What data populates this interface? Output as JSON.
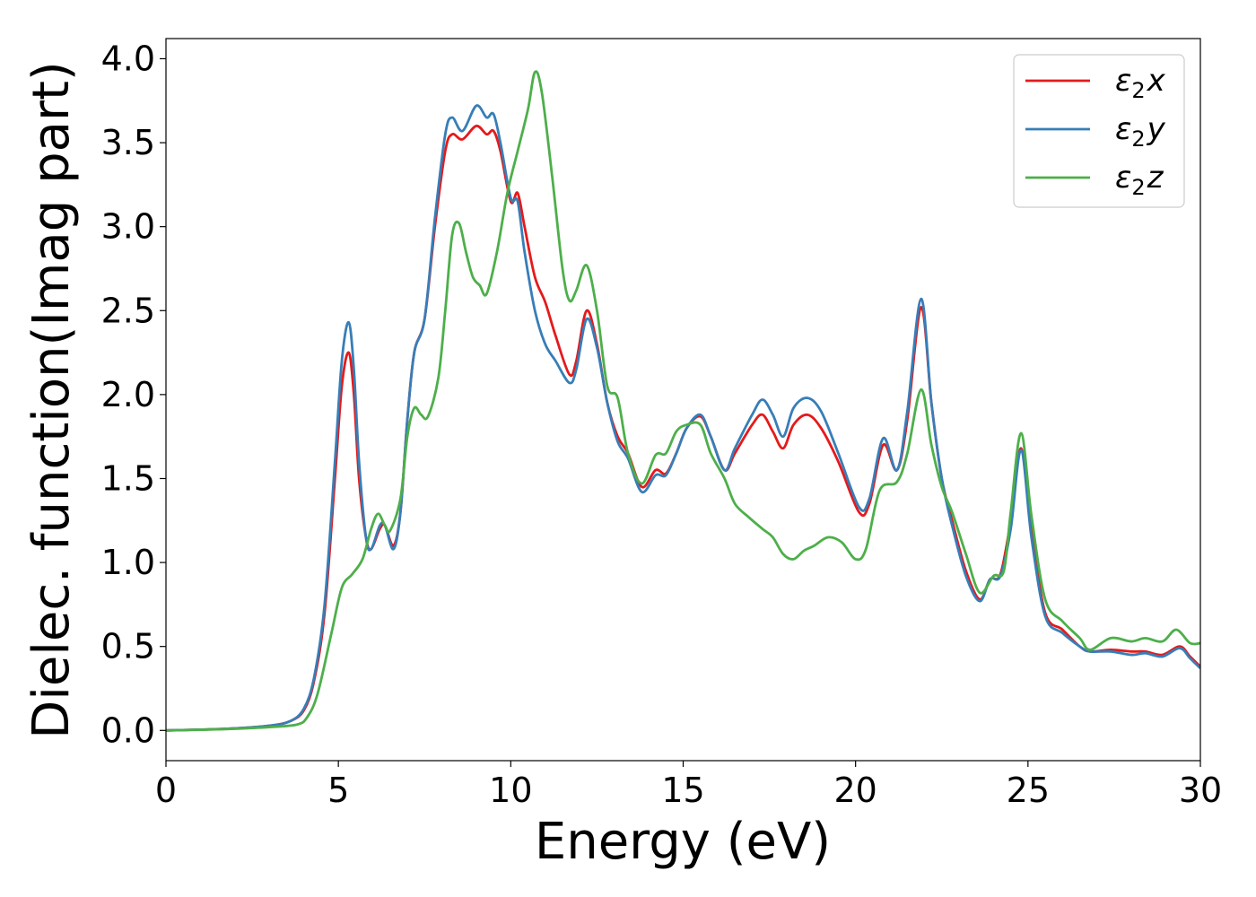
{
  "chart_data": {
    "type": "line",
    "xlabel": "Energy (eV)",
    "ylabel": "Dielec. function(Imag part)",
    "xlim": [
      0,
      30
    ],
    "ylim": [
      -0.18,
      4.12
    ],
    "xticks": [
      "0",
      "5",
      "10",
      "15",
      "20",
      "25",
      "30"
    ],
    "yticks": [
      "0.0",
      "0.5",
      "1.0",
      "1.5",
      "2.0",
      "2.5",
      "3.0",
      "3.5",
      "4.0"
    ],
    "grid": false,
    "legend_position": "top-right",
    "series": [
      {
        "name": "ε₂x",
        "legend_base": "ε",
        "legend_sub": "2",
        "legend_suffix": "x",
        "color": "#e41a1c",
        "points": [
          [
            0,
            0
          ],
          [
            1,
            0.005
          ],
          [
            2,
            0.012
          ],
          [
            3,
            0.028
          ],
          [
            3.6,
            0.055
          ],
          [
            4,
            0.12
          ],
          [
            4.3,
            0.3
          ],
          [
            4.6,
            0.7
          ],
          [
            4.9,
            1.5
          ],
          [
            5.1,
            2.05
          ],
          [
            5.3,
            2.25
          ],
          [
            5.45,
            2.0
          ],
          [
            5.6,
            1.5
          ],
          [
            5.8,
            1.15
          ],
          [
            5.95,
            1.08
          ],
          [
            6.2,
            1.2
          ],
          [
            6.35,
            1.22
          ],
          [
            6.6,
            1.1
          ],
          [
            6.8,
            1.3
          ],
          [
            7.0,
            1.85
          ],
          [
            7.2,
            2.25
          ],
          [
            7.5,
            2.45
          ],
          [
            7.8,
            3.0
          ],
          [
            8.1,
            3.45
          ],
          [
            8.3,
            3.55
          ],
          [
            8.6,
            3.52
          ],
          [
            9.0,
            3.6
          ],
          [
            9.3,
            3.55
          ],
          [
            9.5,
            3.57
          ],
          [
            9.7,
            3.45
          ],
          [
            10.0,
            3.15
          ],
          [
            10.2,
            3.2
          ],
          [
            10.4,
            3.0
          ],
          [
            10.7,
            2.7
          ],
          [
            11.0,
            2.55
          ],
          [
            11.3,
            2.35
          ],
          [
            11.7,
            2.12
          ],
          [
            11.9,
            2.2
          ],
          [
            12.2,
            2.5
          ],
          [
            12.5,
            2.3
          ],
          [
            12.8,
            1.95
          ],
          [
            13.1,
            1.75
          ],
          [
            13.4,
            1.65
          ],
          [
            13.8,
            1.45
          ],
          [
            14.2,
            1.55
          ],
          [
            14.5,
            1.53
          ],
          [
            14.8,
            1.65
          ],
          [
            15.1,
            1.8
          ],
          [
            15.5,
            1.87
          ],
          [
            15.8,
            1.75
          ],
          [
            16.2,
            1.55
          ],
          [
            16.5,
            1.65
          ],
          [
            17.0,
            1.82
          ],
          [
            17.3,
            1.88
          ],
          [
            17.6,
            1.78
          ],
          [
            17.9,
            1.68
          ],
          [
            18.2,
            1.82
          ],
          [
            18.6,
            1.88
          ],
          [
            19.0,
            1.8
          ],
          [
            19.5,
            1.6
          ],
          [
            20.1,
            1.3
          ],
          [
            20.4,
            1.35
          ],
          [
            20.8,
            1.7
          ],
          [
            21.2,
            1.55
          ],
          [
            21.5,
            1.85
          ],
          [
            21.9,
            2.52
          ],
          [
            22.2,
            1.95
          ],
          [
            22.5,
            1.5
          ],
          [
            22.8,
            1.25
          ],
          [
            23.2,
            0.95
          ],
          [
            23.6,
            0.78
          ],
          [
            23.9,
            0.9
          ],
          [
            24.2,
            0.93
          ],
          [
            24.5,
            1.25
          ],
          [
            24.8,
            1.68
          ],
          [
            25.1,
            1.2
          ],
          [
            25.5,
            0.7
          ],
          [
            26.0,
            0.6
          ],
          [
            26.5,
            0.5
          ],
          [
            26.8,
            0.47
          ],
          [
            27.4,
            0.48
          ],
          [
            28.0,
            0.47
          ],
          [
            28.4,
            0.47
          ],
          [
            28.9,
            0.45
          ],
          [
            29.4,
            0.5
          ],
          [
            29.7,
            0.44
          ],
          [
            30,
            0.38
          ]
        ]
      },
      {
        "name": "ε₂y",
        "legend_base": "ε",
        "legend_sub": "2",
        "legend_suffix": "y",
        "color": "#377eb8",
        "points": [
          [
            0,
            0
          ],
          [
            1,
            0.005
          ],
          [
            2,
            0.012
          ],
          [
            3,
            0.028
          ],
          [
            3.6,
            0.055
          ],
          [
            4,
            0.13
          ],
          [
            4.3,
            0.32
          ],
          [
            4.6,
            0.75
          ],
          [
            4.9,
            1.6
          ],
          [
            5.1,
            2.2
          ],
          [
            5.3,
            2.43
          ],
          [
            5.45,
            2.15
          ],
          [
            5.6,
            1.6
          ],
          [
            5.8,
            1.15
          ],
          [
            5.95,
            1.08
          ],
          [
            6.2,
            1.22
          ],
          [
            6.35,
            1.22
          ],
          [
            6.6,
            1.08
          ],
          [
            6.8,
            1.3
          ],
          [
            7.0,
            1.85
          ],
          [
            7.2,
            2.25
          ],
          [
            7.5,
            2.45
          ],
          [
            7.8,
            3.05
          ],
          [
            8.1,
            3.55
          ],
          [
            8.3,
            3.65
          ],
          [
            8.6,
            3.57
          ],
          [
            9.0,
            3.72
          ],
          [
            9.3,
            3.65
          ],
          [
            9.5,
            3.67
          ],
          [
            9.7,
            3.5
          ],
          [
            10.0,
            3.17
          ],
          [
            10.2,
            3.15
          ],
          [
            10.4,
            2.85
          ],
          [
            10.7,
            2.5
          ],
          [
            11.0,
            2.3
          ],
          [
            11.3,
            2.2
          ],
          [
            11.7,
            2.07
          ],
          [
            11.9,
            2.15
          ],
          [
            12.2,
            2.45
          ],
          [
            12.5,
            2.28
          ],
          [
            12.8,
            1.95
          ],
          [
            13.1,
            1.72
          ],
          [
            13.4,
            1.62
          ],
          [
            13.8,
            1.42
          ],
          [
            14.2,
            1.52
          ],
          [
            14.5,
            1.52
          ],
          [
            14.8,
            1.65
          ],
          [
            15.1,
            1.8
          ],
          [
            15.5,
            1.88
          ],
          [
            15.8,
            1.75
          ],
          [
            16.2,
            1.55
          ],
          [
            16.5,
            1.68
          ],
          [
            17.0,
            1.88
          ],
          [
            17.3,
            1.97
          ],
          [
            17.6,
            1.88
          ],
          [
            17.9,
            1.75
          ],
          [
            18.2,
            1.92
          ],
          [
            18.6,
            1.98
          ],
          [
            19.0,
            1.9
          ],
          [
            19.5,
            1.65
          ],
          [
            20.1,
            1.33
          ],
          [
            20.4,
            1.38
          ],
          [
            20.8,
            1.74
          ],
          [
            21.2,
            1.55
          ],
          [
            21.5,
            1.9
          ],
          [
            21.9,
            2.57
          ],
          [
            22.2,
            1.95
          ],
          [
            22.5,
            1.5
          ],
          [
            22.8,
            1.22
          ],
          [
            23.2,
            0.92
          ],
          [
            23.6,
            0.77
          ],
          [
            23.9,
            0.9
          ],
          [
            24.2,
            0.92
          ],
          [
            24.5,
            1.2
          ],
          [
            24.8,
            1.67
          ],
          [
            25.1,
            1.15
          ],
          [
            25.5,
            0.68
          ],
          [
            26.0,
            0.58
          ],
          [
            26.5,
            0.5
          ],
          [
            26.8,
            0.47
          ],
          [
            27.4,
            0.47
          ],
          [
            28.0,
            0.45
          ],
          [
            28.4,
            0.46
          ],
          [
            28.9,
            0.44
          ],
          [
            29.4,
            0.49
          ],
          [
            29.7,
            0.43
          ],
          [
            30,
            0.37
          ]
        ]
      },
      {
        "name": "ε₂z",
        "legend_base": "ε",
        "legend_sub": "2",
        "legend_suffix": "z",
        "color": "#4daf4a",
        "points": [
          [
            0,
            0
          ],
          [
            1,
            0.004
          ],
          [
            2,
            0.01
          ],
          [
            3,
            0.02
          ],
          [
            3.8,
            0.035
          ],
          [
            4.1,
            0.08
          ],
          [
            4.4,
            0.22
          ],
          [
            4.8,
            0.58
          ],
          [
            5.1,
            0.85
          ],
          [
            5.4,
            0.93
          ],
          [
            5.7,
            1.02
          ],
          [
            5.95,
            1.2
          ],
          [
            6.15,
            1.29
          ],
          [
            6.35,
            1.22
          ],
          [
            6.5,
            1.19
          ],
          [
            6.8,
            1.38
          ],
          [
            7.0,
            1.75
          ],
          [
            7.2,
            1.92
          ],
          [
            7.4,
            1.88
          ],
          [
            7.6,
            1.87
          ],
          [
            7.9,
            2.1
          ],
          [
            8.1,
            2.5
          ],
          [
            8.3,
            2.95
          ],
          [
            8.5,
            3.02
          ],
          [
            8.7,
            2.85
          ],
          [
            8.9,
            2.7
          ],
          [
            9.1,
            2.65
          ],
          [
            9.3,
            2.6
          ],
          [
            9.6,
            2.85
          ],
          [
            9.9,
            3.2
          ],
          [
            10.2,
            3.45
          ],
          [
            10.5,
            3.7
          ],
          [
            10.7,
            3.92
          ],
          [
            10.9,
            3.8
          ],
          [
            11.2,
            3.3
          ],
          [
            11.5,
            2.75
          ],
          [
            11.7,
            2.56
          ],
          [
            11.9,
            2.62
          ],
          [
            12.2,
            2.77
          ],
          [
            12.5,
            2.5
          ],
          [
            12.8,
            2.05
          ],
          [
            13.1,
            1.98
          ],
          [
            13.4,
            1.65
          ],
          [
            13.8,
            1.47
          ],
          [
            14.2,
            1.64
          ],
          [
            14.5,
            1.65
          ],
          [
            14.8,
            1.78
          ],
          [
            15.1,
            1.82
          ],
          [
            15.5,
            1.82
          ],
          [
            15.8,
            1.65
          ],
          [
            16.2,
            1.5
          ],
          [
            16.5,
            1.35
          ],
          [
            16.9,
            1.27
          ],
          [
            17.3,
            1.2
          ],
          [
            17.6,
            1.15
          ],
          [
            17.9,
            1.05
          ],
          [
            18.2,
            1.02
          ],
          [
            18.5,
            1.07
          ],
          [
            18.8,
            1.1
          ],
          [
            19.2,
            1.15
          ],
          [
            19.6,
            1.12
          ],
          [
            20.0,
            1.02
          ],
          [
            20.3,
            1.08
          ],
          [
            20.7,
            1.43
          ],
          [
            21.2,
            1.48
          ],
          [
            21.5,
            1.65
          ],
          [
            21.9,
            2.03
          ],
          [
            22.2,
            1.7
          ],
          [
            22.5,
            1.45
          ],
          [
            22.8,
            1.3
          ],
          [
            23.2,
            1.05
          ],
          [
            23.6,
            0.82
          ],
          [
            24.0,
            0.92
          ],
          [
            24.3,
            0.95
          ],
          [
            24.5,
            1.3
          ],
          [
            24.8,
            1.77
          ],
          [
            25.1,
            1.28
          ],
          [
            25.5,
            0.78
          ],
          [
            26.0,
            0.65
          ],
          [
            26.5,
            0.55
          ],
          [
            26.8,
            0.48
          ],
          [
            27.4,
            0.55
          ],
          [
            28.0,
            0.53
          ],
          [
            28.4,
            0.55
          ],
          [
            28.9,
            0.53
          ],
          [
            29.3,
            0.6
          ],
          [
            29.7,
            0.52
          ],
          [
            30,
            0.52
          ]
        ]
      }
    ]
  }
}
